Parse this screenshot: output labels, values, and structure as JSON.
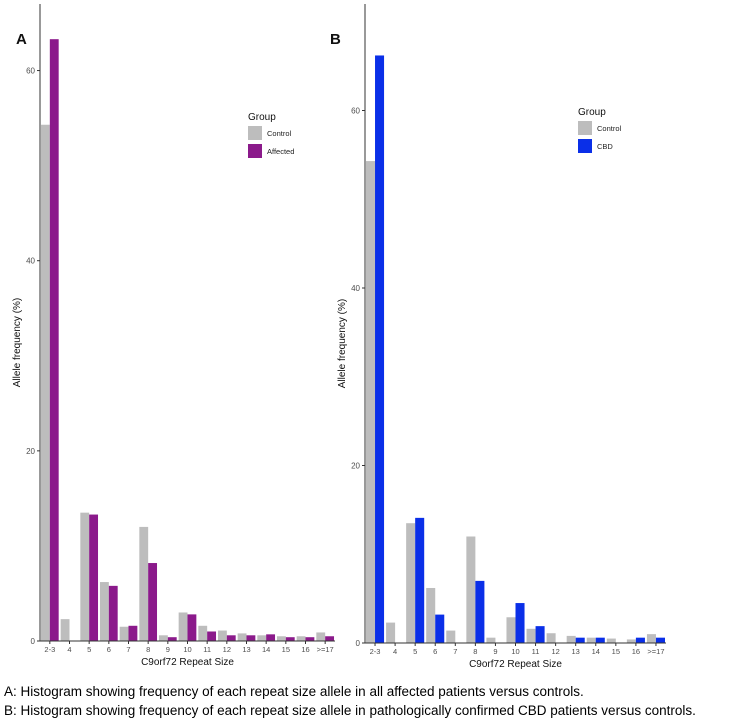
{
  "colors": {
    "control": "#bdbdbd",
    "affected": "#8b1a8b",
    "cbd": "#0a2fe8",
    "axis": "#333333",
    "tick_text": "#4d4d4d"
  },
  "chart_data": [
    {
      "type": "bar",
      "panel_label": "A",
      "xlabel": "C9orf72 Repeat Size",
      "ylabel": "Allele frequency (%)",
      "ylim": [
        0,
        67
      ],
      "yticks": [
        0,
        20,
        40,
        60
      ],
      "grid": false,
      "legend": {
        "title": "Group",
        "placement": "top-right"
      },
      "categories": [
        "2-3",
        "4",
        "5",
        "6",
        "7",
        "8",
        "9",
        "10",
        "11",
        "12",
        "13",
        "14",
        "15",
        "16",
        ">=17"
      ],
      "series": [
        {
          "name": "Control",
          "color": "control",
          "values": [
            54.3,
            2.3,
            13.5,
            6.2,
            1.5,
            12.0,
            0.6,
            3.0,
            1.6,
            1.1,
            0.8,
            0.6,
            0.5,
            0.5,
            0.9
          ]
        },
        {
          "name": "Affected",
          "color": "affected",
          "values": [
            63.3,
            0,
            13.3,
            5.8,
            1.6,
            8.2,
            0.4,
            2.8,
            1.0,
            0.6,
            0.6,
            0.7,
            0.4,
            0.4,
            0.5
          ]
        }
      ]
    },
    {
      "type": "bar",
      "panel_label": "B",
      "xlabel": "C9orf72 Repeat Size",
      "ylabel": "Allele frequency (%)",
      "ylim": [
        0,
        72
      ],
      "yticks": [
        0,
        20,
        40,
        60
      ],
      "grid": false,
      "legend": {
        "title": "Group",
        "placement": "top-right"
      },
      "categories": [
        "2-3",
        "4",
        "5",
        "6",
        "7",
        "8",
        "9",
        "10",
        "11",
        "12",
        "13",
        "14",
        "15",
        "16",
        ">=17"
      ],
      "series": [
        {
          "name": "Control",
          "color": "control",
          "values": [
            54.3,
            2.3,
            13.5,
            6.2,
            1.4,
            12.0,
            0.6,
            2.9,
            1.6,
            1.1,
            0.8,
            0.6,
            0.5,
            0.4,
            1.0
          ]
        },
        {
          "name": "CBD",
          "color": "cbd",
          "values": [
            66.2,
            0,
            14.1,
            3.2,
            0,
            7.0,
            0,
            4.5,
            1.9,
            0,
            0.6,
            0.6,
            0,
            0.6,
            0.6
          ]
        }
      ]
    }
  ],
  "captions": {
    "a": "A: Histogram showing frequency of each repeat size allele in all affected patients versus controls.",
    "b": "B: Histogram showing frequency of each repeat size allele in pathologically confirmed CBD patients versus controls."
  }
}
